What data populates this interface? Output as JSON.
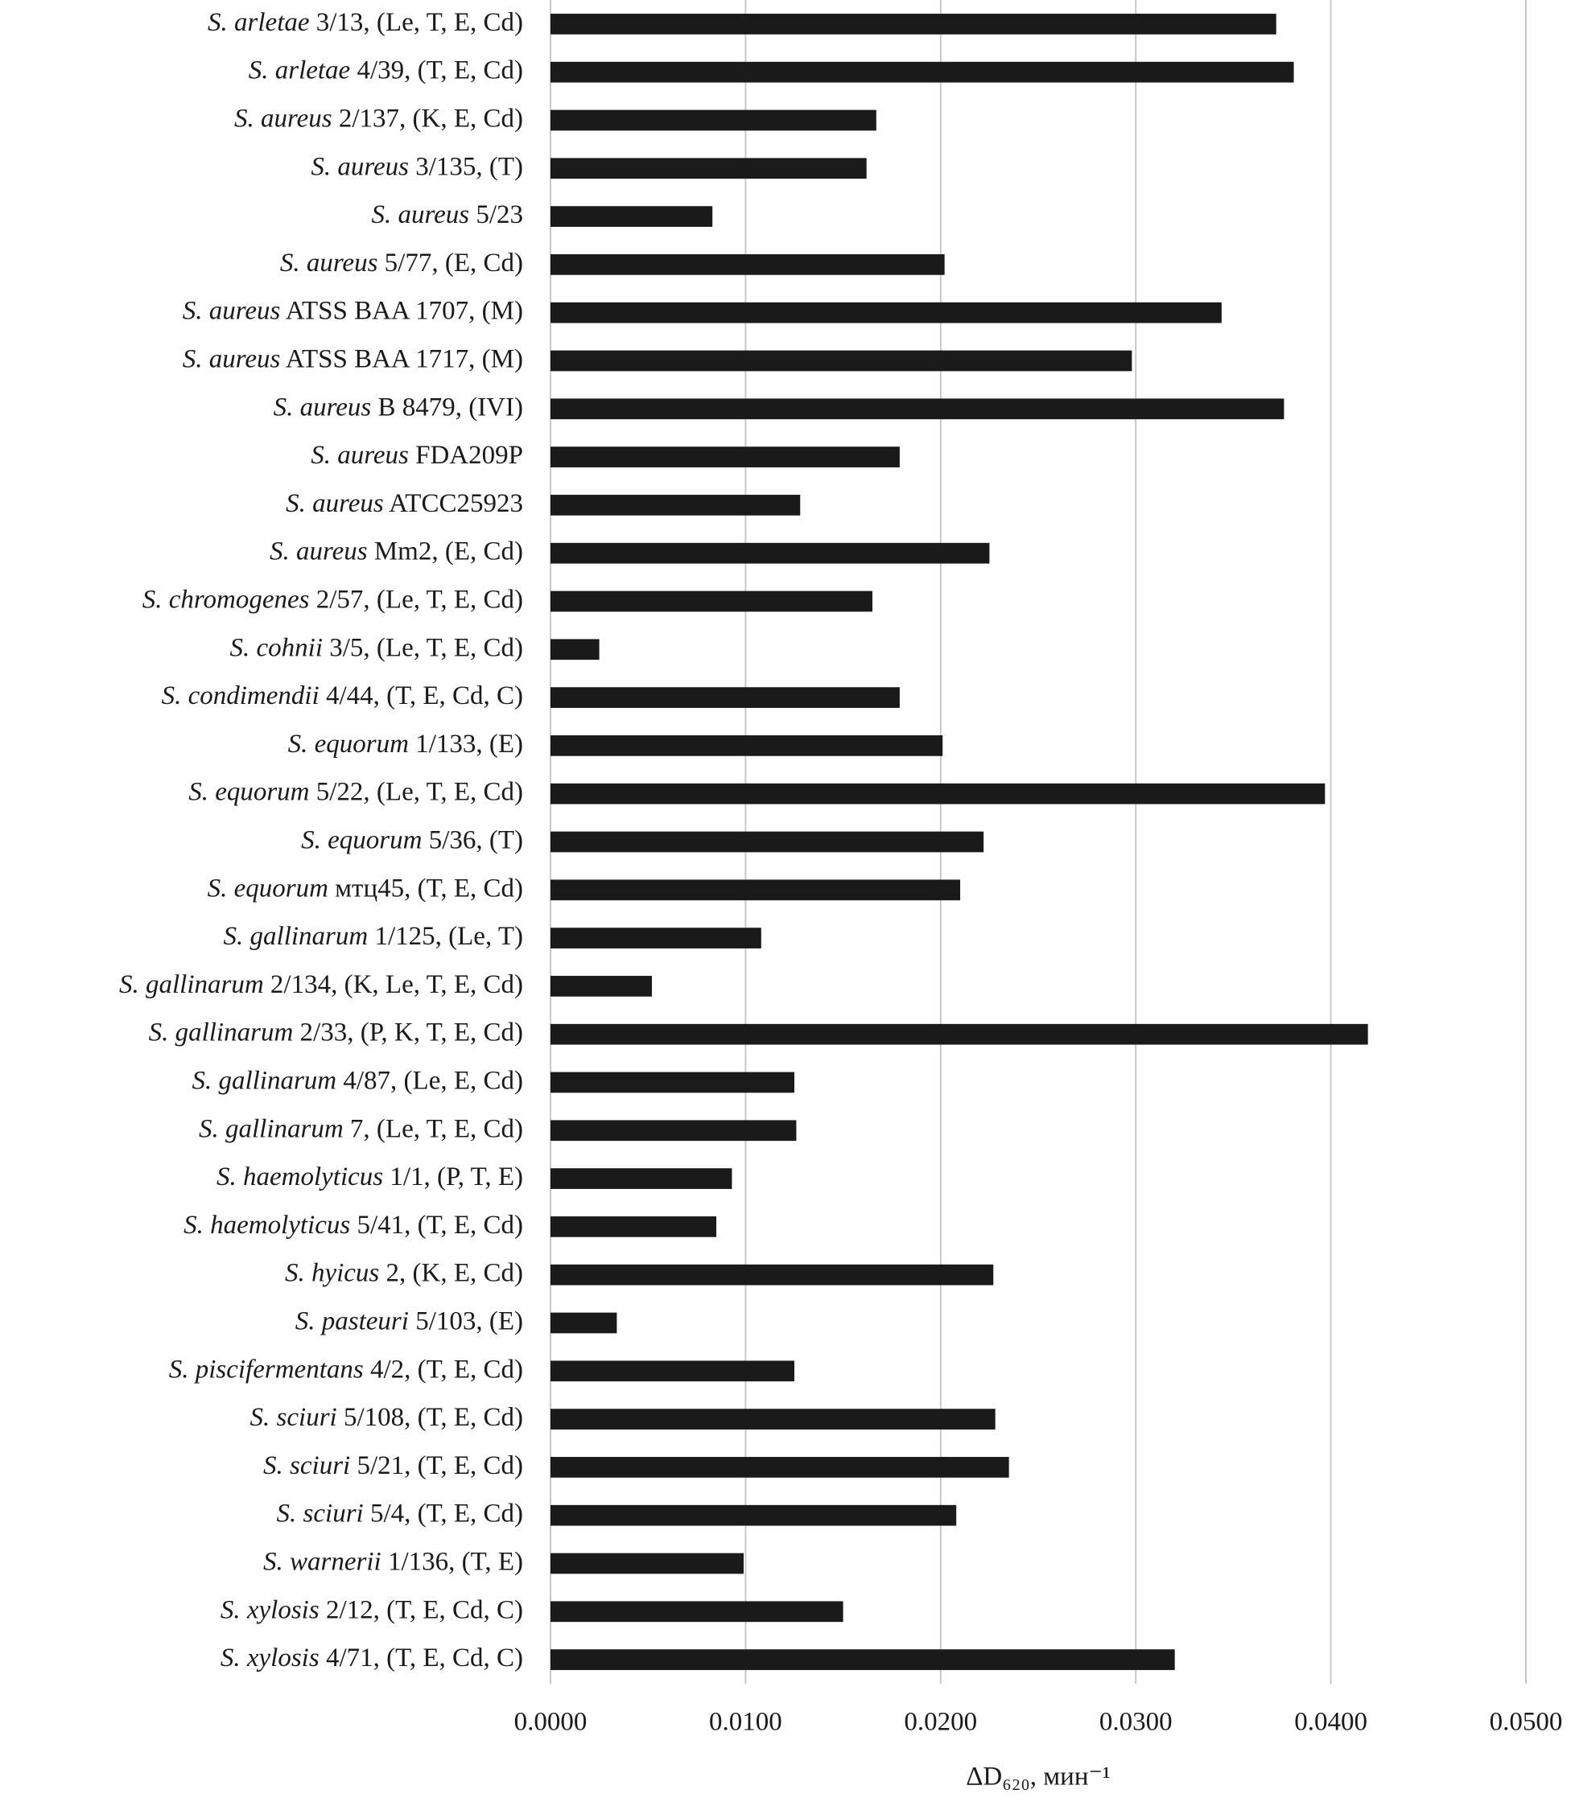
{
  "chart_data": {
    "type": "bar",
    "orientation": "horizontal",
    "categories": [
      "S. arletae 3/13, (Le, T, E, Cd)",
      "S. arletae 4/39, (T, E, Cd)",
      "S. aureus 2/137, (K, E, Cd)",
      "S. aureus 3/135, (T)",
      "S. aureus 5/23",
      "S. aureus 5/77, (E, Cd)",
      "S. aureus ATSS BAA 1707, (M)",
      "S. aureus ATSS BAA 1717, (M)",
      "S. aureus B 8479, (IVI)",
      "S. aureus FDA209P",
      "S. aureus ATCC25923",
      "S. aureus Mm2, (E, Cd)",
      "S. chromogenes 2/57, (Le, T, E, Cd)",
      "S. cohnii 3/5, (Le, T, E, Cd)",
      "S. condimendii 4/44, (T, E, Cd, C)",
      "S. equorum 1/133, (E)",
      "S. equorum 5/22, (Le, T, E, Cd)",
      "S. equorum 5/36, (T)",
      "S. equorum мтц45, (T, E, Cd)",
      "S. gallinarum 1/125, (Le, T)",
      "S. gallinarum 2/134, (K, Le, T, E, Cd)",
      "S. gallinarum 2/33, (P, K, T, E, Cd)",
      "S. gallinarum 4/87, (Le, E, Cd)",
      "S. gallinarum 7, (Le, T, E, Cd)",
      "S. haemolyticus 1/1, (P, T, E)",
      "S. haemolyticus 5/41, (T, E, Cd)",
      "S. hyicus 2, (K, E, Cd)",
      "S. pasteuri 5/103, (E)",
      "S. piscifermentans 4/2, (T, E, Cd)",
      "S. sciuri 5/108, (T, E, Cd)",
      "S. sciuri 5/21, (T, E, Cd)",
      "S. sciuri 5/4, (T, E, Cd)",
      "S. warnerii 1/136, (T, E)",
      "S. xylosis 2/12, (T, E, Cd, C)",
      "S. xylosis 4/71, (T, E, Cd, C)"
    ],
    "values": [
      0.0372,
      0.0381,
      0.0167,
      0.0162,
      0.0083,
      0.0202,
      0.0344,
      0.0298,
      0.0376,
      0.0179,
      0.0128,
      0.0225,
      0.0165,
      0.0025,
      0.0179,
      0.0201,
      0.0397,
      0.0222,
      0.021,
      0.0108,
      0.0052,
      0.0419,
      0.0125,
      0.0126,
      0.0093,
      0.0085,
      0.0227,
      0.0034,
      0.0125,
      0.0228,
      0.0235,
      0.0208,
      0.0099,
      0.015,
      0.032
    ],
    "color": "#1a1a1a",
    "x_label": "ΔD₆₂₀, мин⁻¹",
    "xlim": [
      0,
      0.05
    ],
    "xticks": [
      {
        "value": 0,
        "label": "0.0000"
      },
      {
        "value": 0.01,
        "label": "0.0100"
      },
      {
        "value": 0.02,
        "label": "0.0200"
      },
      {
        "value": 0.03,
        "label": "0.0300"
      },
      {
        "value": 0.04,
        "label": "0.0400"
      },
      {
        "value": 0.05,
        "label": "0.0500"
      }
    ],
    "grid": true
  }
}
